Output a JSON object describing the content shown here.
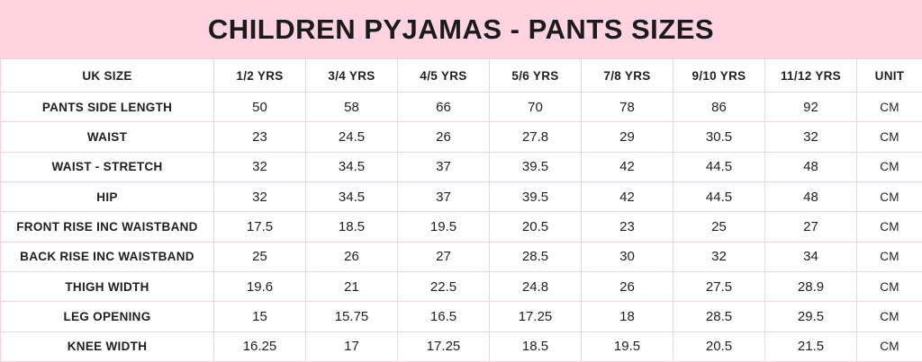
{
  "title": "CHILDREN PYJAMAS - PANTS SIZES",
  "colors": {
    "banner_pink": "#ffd3e0",
    "grid_pink": "#f8cfdd",
    "text_dark": "#1b1b1b",
    "cell_bg": "#ffffff"
  },
  "table": {
    "columns": [
      "UK SIZE",
      "1/2 YRS",
      "3/4 YRS",
      "4/5 YRS",
      "5/6 YRS",
      "7/8 YRS",
      "9/10 YRS",
      "11/12 YRS",
      "UNIT"
    ],
    "rows": [
      {
        "label": "PANTS SIDE LENGTH",
        "values": [
          "50",
          "58",
          "66",
          "70",
          "78",
          "86",
          "92"
        ],
        "unit": "CM"
      },
      {
        "label": "WAIST",
        "values": [
          "23",
          "24.5",
          "26",
          "27.8",
          "29",
          "30.5",
          "32"
        ],
        "unit": "CM"
      },
      {
        "label": "WAIST - STRETCH",
        "values": [
          "32",
          "34.5",
          "37",
          "39.5",
          "42",
          "44.5",
          "48"
        ],
        "unit": "CM"
      },
      {
        "label": "HIP",
        "values": [
          "32",
          "34.5",
          "37",
          "39.5",
          "42",
          "44.5",
          "48"
        ],
        "unit": "CM"
      },
      {
        "label": "FRONT RISE INC WAISTBAND",
        "values": [
          "17.5",
          "18.5",
          "19.5",
          "20.5",
          "23",
          "25",
          "27"
        ],
        "unit": "CM"
      },
      {
        "label": "BACK RISE INC WAISTBAND",
        "values": [
          "25",
          "26",
          "27",
          "28.5",
          "30",
          "32",
          "34"
        ],
        "unit": "CM"
      },
      {
        "label": "THIGH WIDTH",
        "values": [
          "19.6",
          "21",
          "22.5",
          "24.8",
          "26",
          "27.5",
          "28.9"
        ],
        "unit": "CM"
      },
      {
        "label": "LEG OPENING",
        "values": [
          "15",
          "15.75",
          "16.5",
          "17.25",
          "18",
          "28.5",
          "29.5"
        ],
        "unit": "CM"
      },
      {
        "label": "KNEE WIDTH",
        "values": [
          "16.25",
          "17",
          "17.25",
          "18.5",
          "19.5",
          "20.5",
          "21.5"
        ],
        "unit": "CM"
      }
    ]
  }
}
